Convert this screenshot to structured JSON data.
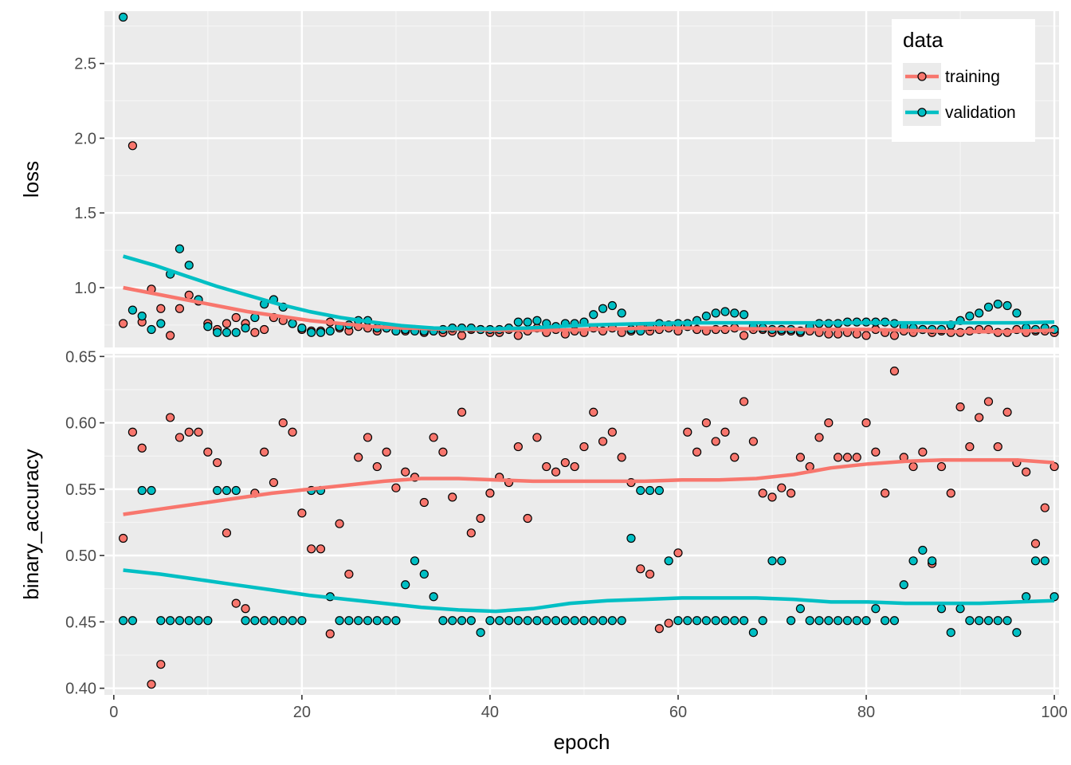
{
  "chart_data": {
    "type": "scatter",
    "x_label": "epoch",
    "x_ticks": [
      0,
      20,
      40,
      60,
      80,
      100
    ],
    "x_range": [
      -1,
      100.5
    ],
    "legend": {
      "title": "data",
      "position": "top-right",
      "entries": [
        "training",
        "validation"
      ]
    },
    "colors": {
      "training": "#F8766D",
      "validation": "#00BFC4"
    },
    "grid": true,
    "panels": [
      {
        "name": "loss",
        "y_label": "loss",
        "y_range": [
          0.6,
          2.85
        ],
        "y_ticks": [
          1.0,
          1.5,
          2.0,
          2.5
        ],
        "y_tick_labels": [
          "1.0",
          "1.5",
          "2.0",
          "2.5"
        ],
        "series": [
          {
            "name": "training",
            "values": [
              0.76,
              1.95,
              0.77,
              0.99,
              0.86,
              0.68,
              0.86,
              0.95,
              0.91,
              0.76,
              0.72,
              0.76,
              0.8,
              0.76,
              0.7,
              0.72,
              0.8,
              0.78,
              0.76,
              0.72,
              0.71,
              0.71,
              0.77,
              0.73,
              0.71,
              0.74,
              0.73,
              0.71,
              0.73,
              0.71,
              0.71,
              0.72,
              0.7,
              0.71,
              0.7,
              0.71,
              0.68,
              0.72,
              0.72,
              0.7,
              0.7,
              0.72,
              0.68,
              0.71,
              0.73,
              0.7,
              0.72,
              0.69,
              0.71,
              0.7,
              0.73,
              0.71,
              0.73,
              0.7,
              0.71,
              0.74,
              0.71,
              0.72,
              0.73,
              0.71,
              0.74,
              0.72,
              0.71,
              0.72,
              0.72,
              0.73,
              0.68,
              0.72,
              0.72,
              0.7,
              0.71,
              0.71,
              0.7,
              0.71,
              0.7,
              0.69,
              0.69,
              0.7,
              0.69,
              0.68,
              0.72,
              0.7,
              0.68,
              0.71,
              0.7,
              0.72,
              0.7,
              0.71,
              0.7,
              0.7,
              0.71,
              0.72,
              0.72,
              0.7,
              0.7,
              0.72,
              0.7,
              0.71,
              0.71,
              0.7
            ],
            "trend": [
              1.0,
              0.96,
              0.92,
              0.88,
              0.84,
              0.81,
              0.78,
              0.76,
              0.74,
              0.73,
              0.725,
              0.72,
              0.715,
              0.715,
              0.715,
              0.72,
              0.725,
              0.73,
              0.73,
              0.73,
              0.725,
              0.725,
              0.72,
              0.72,
              0.72,
              0.715,
              0.71,
              0.705,
              0.705,
              0.71,
              0.715
            ]
          },
          {
            "name": "validation",
            "values": [
              2.81,
              0.85,
              0.81,
              0.72,
              0.76,
              1.09,
              1.26,
              1.15,
              0.92,
              0.74,
              0.7,
              0.7,
              0.7,
              0.73,
              0.8,
              0.89,
              0.92,
              0.87,
              0.76,
              0.73,
              0.7,
              0.7,
              0.71,
              0.74,
              0.75,
              0.78,
              0.78,
              0.73,
              0.73,
              0.71,
              0.72,
              0.71,
              0.71,
              0.71,
              0.72,
              0.73,
              0.73,
              0.73,
              0.72,
              0.72,
              0.72,
              0.73,
              0.77,
              0.77,
              0.78,
              0.76,
              0.74,
              0.76,
              0.76,
              0.77,
              0.82,
              0.86,
              0.88,
              0.83,
              0.72,
              0.71,
              0.74,
              0.76,
              0.75,
              0.76,
              0.76,
              0.78,
              0.81,
              0.83,
              0.84,
              0.83,
              0.82,
              0.74,
              0.73,
              0.72,
              0.72,
              0.72,
              0.71,
              0.74,
              0.76,
              0.76,
              0.76,
              0.77,
              0.77,
              0.77,
              0.77,
              0.77,
              0.76,
              0.74,
              0.73,
              0.72,
              0.72,
              0.72,
              0.75,
              0.78,
              0.81,
              0.83,
              0.87,
              0.89,
              0.88,
              0.83,
              0.73,
              0.72,
              0.73,
              0.72
            ],
            "trend": [
              1.21,
              1.15,
              1.08,
              1.01,
              0.95,
              0.89,
              0.84,
              0.8,
              0.77,
              0.745,
              0.73,
              0.725,
              0.725,
              0.73,
              0.74,
              0.75,
              0.755,
              0.76,
              0.765,
              0.765,
              0.765,
              0.765,
              0.765,
              0.765,
              0.765,
              0.765,
              0.765,
              0.765,
              0.765,
              0.765,
              0.77
            ]
          }
        ]
      },
      {
        "name": "binary_accuracy",
        "y_label": "binary_accuracy",
        "y_range": [
          0.395,
          0.652
        ],
        "y_ticks": [
          0.4,
          0.45,
          0.5,
          0.55,
          0.6,
          0.65
        ],
        "y_tick_labels": [
          "0.40",
          "0.45",
          "0.50",
          "0.55",
          "0.60",
          "0.65"
        ],
        "series": [
          {
            "name": "training",
            "values": [
              0.513,
              0.593,
              0.581,
              0.403,
              0.418,
              0.604,
              0.589,
              0.593,
              0.593,
              0.578,
              0.57,
              0.517,
              0.464,
              0.46,
              0.547,
              0.578,
              0.555,
              0.6,
              0.593,
              0.532,
              0.505,
              0.505,
              0.441,
              0.524,
              0.486,
              0.574,
              0.589,
              0.567,
              0.578,
              0.551,
              0.563,
              0.559,
              0.54,
              0.589,
              0.578,
              0.544,
              0.608,
              0.517,
              0.528,
              0.547,
              0.559,
              0.555,
              0.582,
              0.528,
              0.589,
              0.567,
              0.563,
              0.57,
              0.567,
              0.582,
              0.608,
              0.586,
              0.593,
              0.574,
              0.555,
              0.49,
              0.486,
              0.445,
              0.449,
              0.502,
              0.593,
              0.578,
              0.6,
              0.586,
              0.593,
              0.574,
              0.616,
              0.586,
              0.547,
              0.544,
              0.551,
              0.547,
              0.574,
              0.567,
              0.589,
              0.6,
              0.574,
              0.574,
              0.574,
              0.6,
              0.578,
              0.547,
              0.639,
              0.574,
              0.567,
              0.578,
              0.494,
              0.567,
              0.547,
              0.612,
              0.582,
              0.604,
              0.616,
              0.582,
              0.608,
              0.57,
              0.563,
              0.509,
              0.536,
              0.567
            ],
            "trend": [
              0.531,
              0.535,
              0.539,
              0.543,
              0.547,
              0.55,
              0.553,
              0.556,
              0.558,
              0.558,
              0.557,
              0.556,
              0.556,
              0.556,
              0.556,
              0.557,
              0.557,
              0.558,
              0.561,
              0.566,
              0.569,
              0.571,
              0.572,
              0.572,
              0.572,
              0.57
            ]
          },
          {
            "name": "validation",
            "values": [
              0.451,
              0.451,
              0.549,
              0.549,
              0.451,
              0.451,
              0.451,
              0.451,
              0.451,
              0.451,
              0.549,
              0.549,
              0.549,
              0.451,
              0.451,
              0.451,
              0.451,
              0.451,
              0.451,
              0.451,
              0.549,
              0.549,
              0.469,
              0.451,
              0.451,
              0.451,
              0.451,
              0.451,
              0.451,
              0.451,
              0.478,
              0.496,
              0.486,
              0.469,
              0.451,
              0.451,
              0.451,
              0.451,
              0.442,
              0.451,
              0.451,
              0.451,
              0.451,
              0.451,
              0.451,
              0.451,
              0.451,
              0.451,
              0.451,
              0.451,
              0.451,
              0.451,
              0.451,
              0.451,
              0.513,
              0.549,
              0.549,
              0.549,
              0.496,
              0.451,
              0.451,
              0.451,
              0.451,
              0.451,
              0.451,
              0.451,
              0.451,
              0.442,
              0.451,
              0.496,
              0.496,
              0.451,
              0.46,
              0.451,
              0.451,
              0.451,
              0.451,
              0.451,
              0.451,
              0.451,
              0.46,
              0.451,
              0.451,
              0.478,
              0.496,
              0.504,
              0.496,
              0.46,
              0.442,
              0.46,
              0.451,
              0.451,
              0.451,
              0.451,
              0.451,
              0.442,
              0.469,
              0.496,
              0.496,
              0.469
            ],
            "trend": [
              0.489,
              0.486,
              0.482,
              0.478,
              0.474,
              0.47,
              0.467,
              0.464,
              0.461,
              0.459,
              0.458,
              0.46,
              0.464,
              0.466,
              0.467,
              0.468,
              0.468,
              0.468,
              0.467,
              0.465,
              0.465,
              0.464,
              0.464,
              0.464,
              0.465,
              0.466
            ]
          }
        ]
      }
    ]
  }
}
